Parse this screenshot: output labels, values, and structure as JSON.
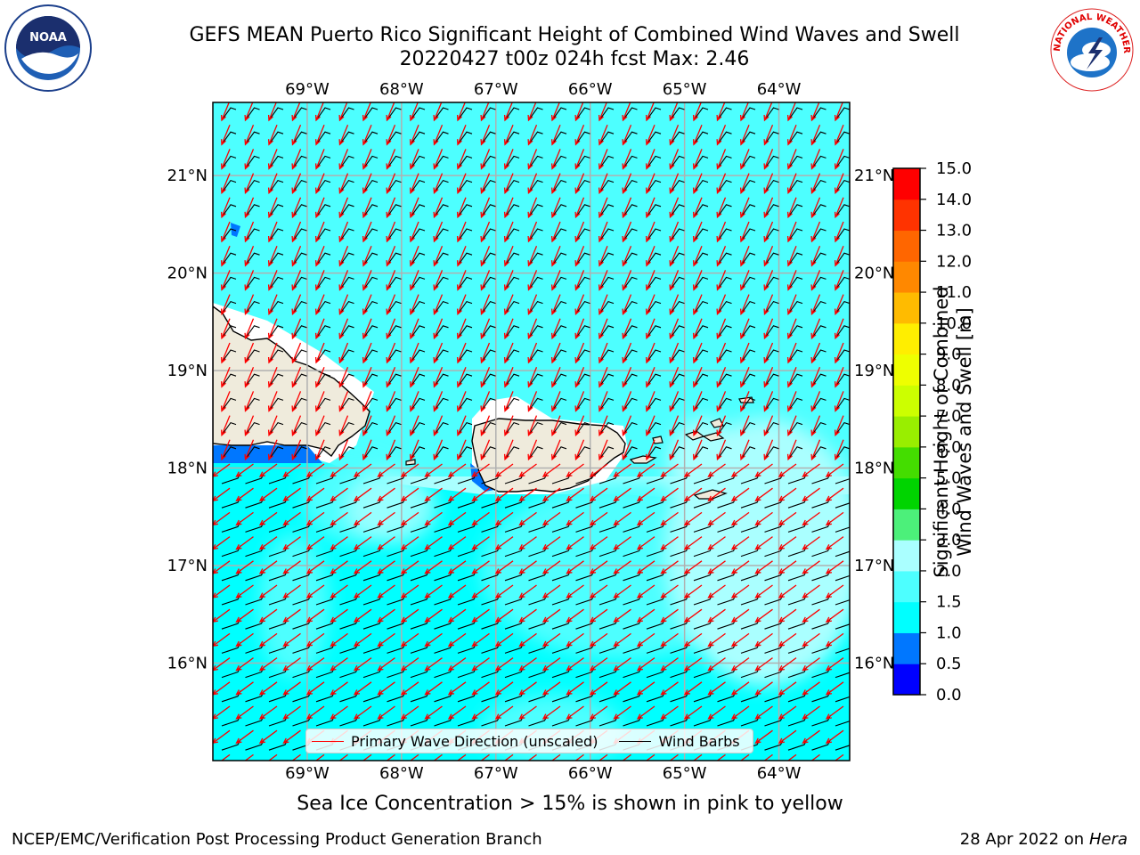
{
  "header": {
    "title_line1": "GEFS MEAN Puerto Rico Significant Height of Combined Wind Waves and Swell",
    "title_line2": "20220427 t00z 024h fcst   Max: 2.46"
  },
  "logos": {
    "left": "NOAA",
    "left_ring_text": "NATIONAL OCEANIC AND ATMOSPHERIC ADMINISTRATION · U.S. DEPARTMENT OF COMMERCE",
    "right_ring_text": "NATIONAL WEATHER SERVICE"
  },
  "map": {
    "lon_labels": [
      "69°W",
      "68°W",
      "67°W",
      "66°W",
      "65°W",
      "64°W"
    ],
    "lat_labels": [
      "16°N",
      "17°N",
      "18°N",
      "19°N",
      "20°N",
      "21°N"
    ],
    "lon_values": [
      -69,
      -68,
      -67,
      -66,
      -65,
      -64
    ],
    "lat_values": [
      16,
      17,
      18,
      19,
      20,
      21
    ],
    "lon_range": [
      -70.0,
      -63.25
    ],
    "lat_range": [
      15.0,
      21.75
    ],
    "arrow_direction_note": "waves toward SW",
    "colors": {
      "wave_arrow": "#ff0000",
      "barb": "#000000",
      "land": "#efebdc",
      "grid": "#b0b0b0"
    }
  },
  "legend": {
    "primary_wave": "Primary Wave Direction (unscaled)",
    "wind_barbs": "Wind Barbs"
  },
  "colorbar": {
    "title_line1": "Significant Height of Combined",
    "title_line2": "Wind Waves and Swell [m]",
    "ticks": [
      "0.0",
      "0.5",
      "1.0",
      "1.5",
      "2.0",
      "3.0",
      "4.0",
      "5.0",
      "6.0",
      "7.0",
      "8.0",
      "9.0",
      "10.0",
      "11.0",
      "12.0",
      "13.0",
      "14.0",
      "15.0"
    ],
    "colors": [
      "#0000ff",
      "#0077ff",
      "#00ffff",
      "#4dffff",
      "#aaffff",
      "#4cf07a",
      "#00d400",
      "#44dd00",
      "#99ee00",
      "#ccff00",
      "#eeff00",
      "#ffee00",
      "#ffbb00",
      "#ff8800",
      "#ff6600",
      "#ff3300",
      "#ff0000"
    ]
  },
  "note": "Sea Ice Concentration > 15% is shown in pink to yellow",
  "footer": {
    "left": "NCEP/EMC/Verification Post Processing Product Generation Branch",
    "right_prefix": "28 Apr 2022 on ",
    "right_host": "Hera"
  }
}
